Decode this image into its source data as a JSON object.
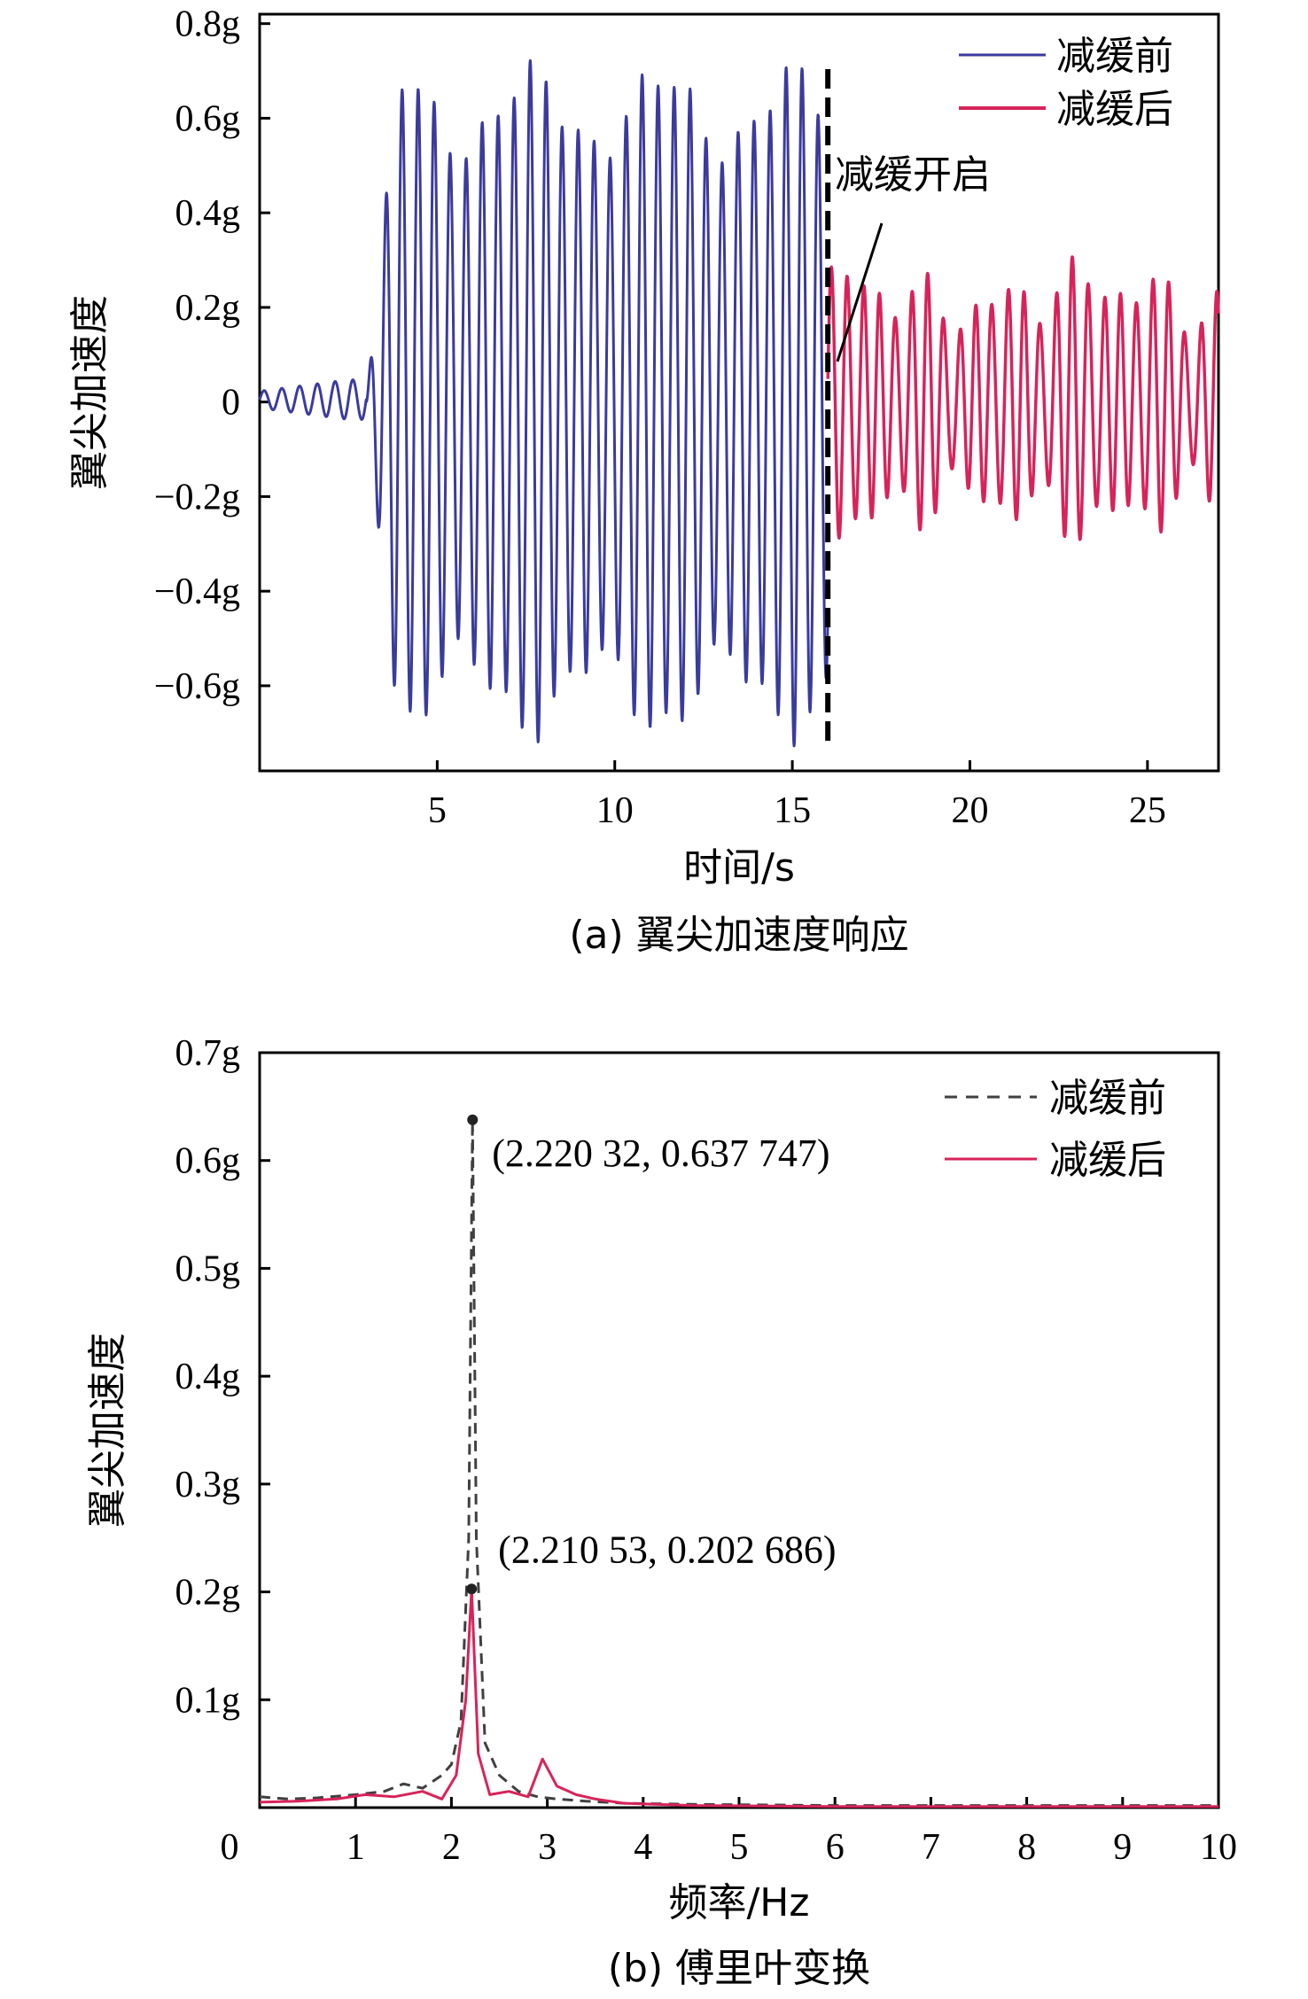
{
  "chart_data": [
    {
      "type": "line",
      "caption": "(a) 翼尖加速度响应",
      "xlabel": "时间/s",
      "ylabel": "翼尖加速度",
      "xlim": [
        0,
        27
      ],
      "ylim": [
        -0.78,
        0.82
      ],
      "xticks": [
        5,
        10,
        15,
        20,
        25
      ],
      "xtick_labels": [
        "5",
        "10",
        "15",
        "20",
        "25"
      ],
      "yticks": [
        0.8,
        0.6,
        0.4,
        0.2,
        0,
        -0.2,
        -0.4,
        -0.6
      ],
      "ytick_labels": [
        "0.8g",
        "0.6g",
        "0.4g",
        "0.2g",
        "0",
        "−0.2g",
        "−0.4g",
        "−0.6g"
      ],
      "series": [
        {
          "name": "减缓前",
          "color": "#3b3b9e",
          "style": "solid",
          "segments": [
            {
              "t0": 0,
              "t1": 3.0,
              "freq": 2.0,
              "amp": 0.03
            },
            {
              "t0": 3.0,
              "t1": 16.0,
              "freq": 2.22,
              "amp": 0.68
            }
          ]
        },
        {
          "name": "减缓后",
          "color": "#d8235a",
          "style": "solid",
          "segments": [
            {
              "t0": 16.0,
              "t1": 27.0,
              "freq": 2.21,
              "amp": 0.22
            }
          ]
        }
      ],
      "vline": {
        "x": 16.0,
        "label": "减缓开启"
      },
      "legend_position": "top-right"
    },
    {
      "type": "line",
      "caption": "(b) 傅里叶变换",
      "xlabel": "频率/Hz",
      "ylabel": "翼尖加速度",
      "xlim": [
        0,
        10
      ],
      "ylim": [
        0,
        0.7
      ],
      "xticks": [
        0,
        1,
        2,
        3,
        4,
        5,
        6,
        7,
        8,
        9,
        10
      ],
      "xtick_labels": [
        "0",
        "1",
        "2",
        "3",
        "4",
        "5",
        "6",
        "7",
        "8",
        "9",
        "10"
      ],
      "yticks": [
        0.7,
        0.6,
        0.5,
        0.4,
        0.3,
        0.2,
        0.1
      ],
      "ytick_labels": [
        "0.7g",
        "0.6g",
        "0.5g",
        "0.4g",
        "0.3g",
        "0.2g",
        "0.1g"
      ],
      "series": [
        {
          "name": "减缓前",
          "color": "#404040",
          "style": "dashed",
          "x": [
            0,
            0.3,
            0.6,
            1.0,
            1.3,
            1.5,
            1.7,
            1.9,
            2.0,
            2.1,
            2.18,
            2.2203,
            2.26,
            2.35,
            2.5,
            2.7,
            2.9,
            3.1,
            3.4,
            3.8,
            4.5,
            6,
            8,
            10
          ],
          "y": [
            0.01,
            0.008,
            0.009,
            0.012,
            0.015,
            0.022,
            0.018,
            0.03,
            0.04,
            0.08,
            0.25,
            0.637747,
            0.25,
            0.06,
            0.03,
            0.015,
            0.01,
            0.008,
            0.006,
            0.004,
            0.003,
            0.002,
            0.002,
            0.002
          ]
        },
        {
          "name": "减缓后",
          "color": "#d8235a",
          "style": "solid",
          "x": [
            0,
            0.4,
            0.8,
            1.1,
            1.4,
            1.7,
            1.9,
            2.05,
            2.15,
            2.21053,
            2.28,
            2.4,
            2.6,
            2.8,
            2.95,
            3.1,
            3.3,
            3.5,
            3.8,
            4.5,
            6,
            8,
            10
          ],
          "y": [
            0.005,
            0.006,
            0.008,
            0.012,
            0.01,
            0.015,
            0.008,
            0.03,
            0.1,
            0.202686,
            0.05,
            0.012,
            0.015,
            0.01,
            0.045,
            0.02,
            0.012,
            0.008,
            0.004,
            0.002,
            0.001,
            0.001,
            0.001
          ]
        }
      ],
      "annotations": [
        {
          "x": 2.22032,
          "y": 0.637747,
          "text": "(2.220 32, 0.637 747)"
        },
        {
          "x": 2.21053,
          "y": 0.202686,
          "text": "(2.210 53, 0.202 686)"
        }
      ],
      "legend_position": "top-right"
    }
  ]
}
